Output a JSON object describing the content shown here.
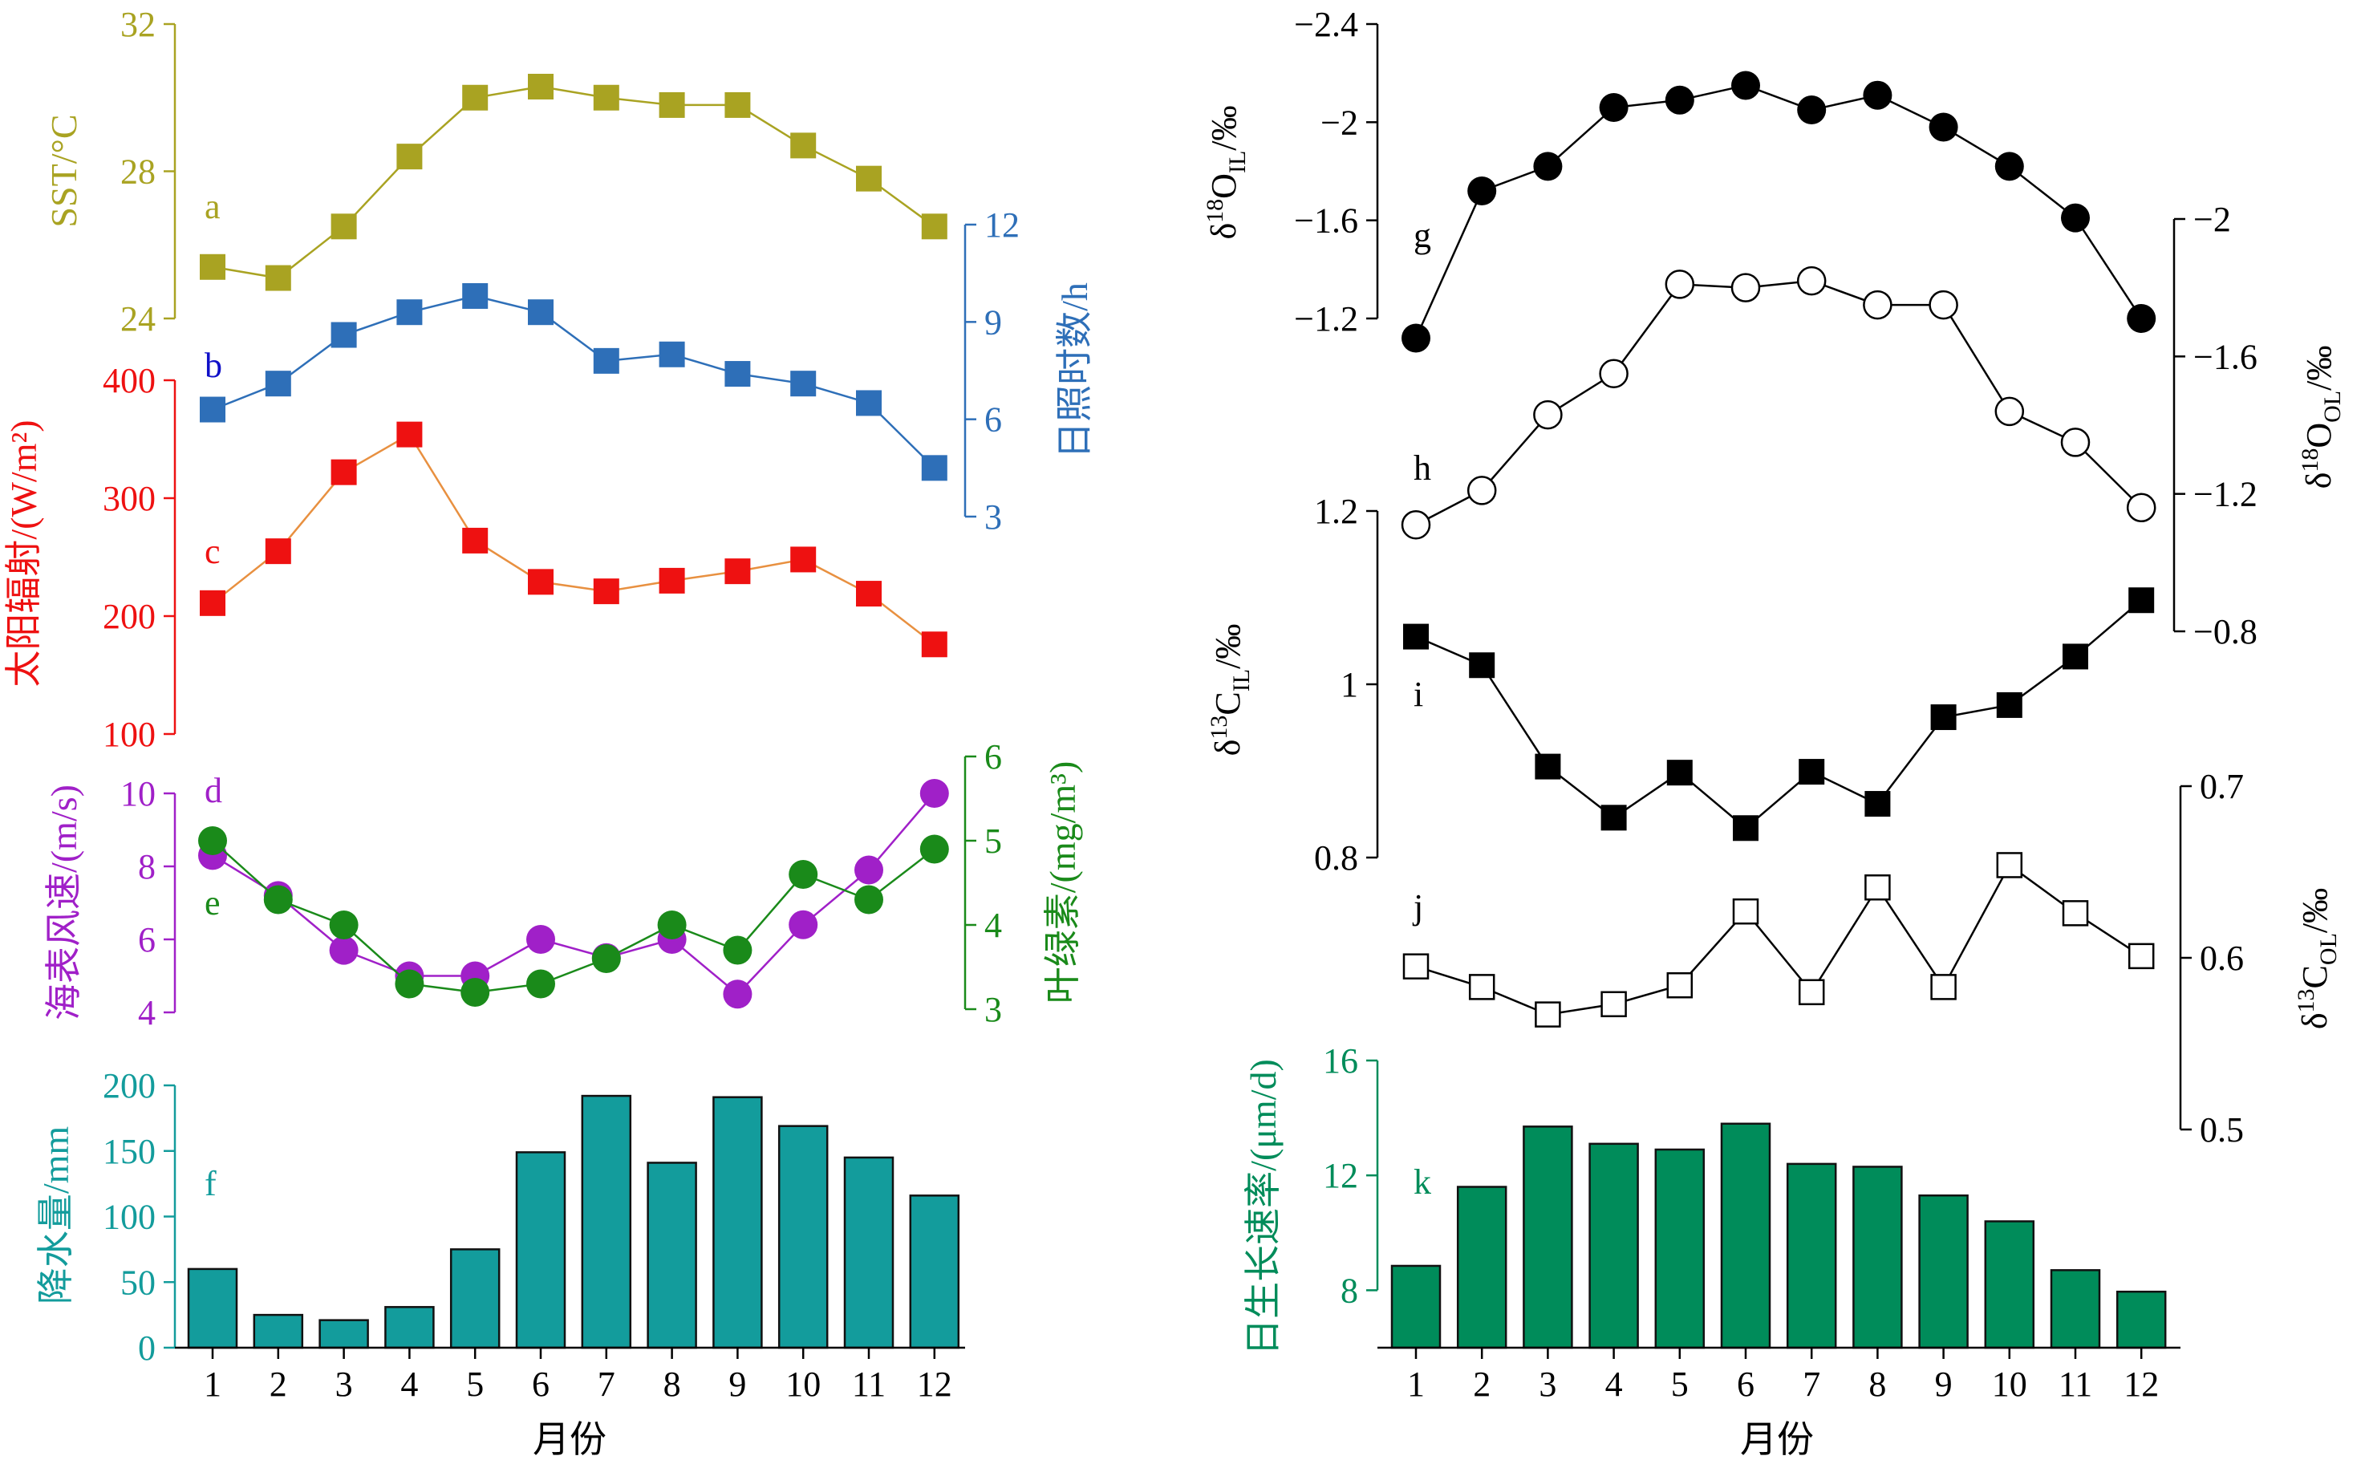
{
  "x_axis": {
    "label": "月份",
    "ticks": [
      "1",
      "2",
      "3",
      "4",
      "5",
      "6",
      "7",
      "8",
      "9",
      "10",
      "11",
      "12"
    ]
  },
  "chart_data": [
    {
      "id": "a",
      "type": "line",
      "marker": "filled-square",
      "color": "#A9A322",
      "panel_label": "a",
      "ylabel": "SST/°C",
      "axis_side": "left",
      "ylim": [
        24,
        32
      ],
      "yticks": [
        24,
        28,
        32
      ],
      "x": [
        1,
        2,
        3,
        4,
        5,
        6,
        7,
        8,
        9,
        10,
        11,
        12
      ],
      "values": [
        25.4,
        25.1,
        26.5,
        28.4,
        30.0,
        30.3,
        30.0,
        29.8,
        29.8,
        28.7,
        27.8,
        26.5
      ]
    },
    {
      "id": "b",
      "type": "line",
      "marker": "filled-square",
      "color": "#2E6FB8",
      "label_color": "#1010C8",
      "panel_label": "b",
      "ylabel": "日照时数/h",
      "axis_side": "right",
      "ylim": [
        3,
        12
      ],
      "yticks": [
        3,
        6,
        9,
        12
      ],
      "x": [
        1,
        2,
        3,
        4,
        5,
        6,
        7,
        8,
        9,
        10,
        11,
        12
      ],
      "values": [
        6.3,
        7.1,
        8.6,
        9.3,
        9.8,
        9.3,
        7.8,
        8.0,
        7.4,
        7.1,
        6.5,
        4.5
      ]
    },
    {
      "id": "c",
      "type": "line",
      "marker": "filled-square",
      "color": "#EE1111",
      "line_color": "#E89040",
      "panel_label": "c",
      "ylabel": "太阳辐射/(W/m²)",
      "axis_side": "left",
      "ylim": [
        100,
        400
      ],
      "yticks": [
        100,
        200,
        300,
        400
      ],
      "x": [
        1,
        2,
        3,
        4,
        5,
        6,
        7,
        8,
        9,
        10,
        11,
        12
      ],
      "values": [
        211,
        255,
        322,
        354,
        264,
        229,
        221,
        230,
        238,
        248,
        219,
        176
      ]
    },
    {
      "id": "d",
      "type": "line",
      "marker": "filled-circle",
      "color": "#A020C8",
      "panel_label": "d",
      "ylabel": "海表风速/(m/s)",
      "axis_side": "left",
      "ylim": [
        4,
        10
      ],
      "yticks": [
        4,
        6,
        8,
        10
      ],
      "x": [
        1,
        2,
        3,
        4,
        5,
        6,
        7,
        8,
        9,
        10,
        11,
        12
      ],
      "values": [
        8.3,
        7.2,
        5.7,
        5.0,
        5.0,
        6.0,
        5.5,
        6.0,
        4.5,
        6.4,
        7.9,
        10.0
      ]
    },
    {
      "id": "e",
      "type": "line",
      "marker": "filled-circle",
      "color": "#1A8A1A",
      "panel_label": "e",
      "ylabel": "叶绿素/(mg/m³)",
      "axis_side": "right",
      "ylim": [
        3,
        6
      ],
      "yticks": [
        3,
        4,
        5,
        6
      ],
      "x": [
        1,
        2,
        3,
        4,
        5,
        6,
        7,
        8,
        9,
        10,
        11,
        12
      ],
      "values": [
        5.0,
        4.3,
        4.0,
        3.3,
        3.2,
        3.3,
        3.6,
        4.0,
        3.7,
        4.6,
        4.3,
        4.9
      ]
    },
    {
      "id": "f",
      "type": "bar",
      "color": "#139C9C",
      "panel_label": "f",
      "ylabel": "降水量/mm",
      "axis_side": "left",
      "ylim": [
        0,
        200
      ],
      "yticks": [
        0,
        50,
        100,
        150,
        200
      ],
      "x": [
        1,
        2,
        3,
        4,
        5,
        6,
        7,
        8,
        9,
        10,
        11,
        12
      ],
      "values": [
        60,
        25,
        21,
        31,
        75,
        149,
        192,
        141,
        191,
        169,
        145,
        116
      ]
    },
    {
      "id": "g",
      "type": "line",
      "marker": "filled-circle",
      "color": "#000000",
      "panel_label": "g",
      "ylabel": "δ18OIL/‰",
      "axis_side": "left",
      "inverted": true,
      "ylim": [
        -1.2,
        -2.4
      ],
      "yticks": [
        -1.2,
        -1.6,
        -2.0,
        -2.4
      ],
      "x": [
        1,
        2,
        3,
        4,
        5,
        6,
        7,
        8,
        9,
        10,
        11,
        12
      ],
      "values": [
        -1.12,
        -1.72,
        -1.82,
        -2.06,
        -2.09,
        -2.15,
        -2.05,
        -2.11,
        -1.98,
        -1.82,
        -1.61,
        -1.2
      ]
    },
    {
      "id": "h",
      "type": "line",
      "marker": "open-circle",
      "color": "#000000",
      "panel_label": "h",
      "ylabel": "δ18OOL/‰",
      "axis_side": "right",
      "inverted": true,
      "ylim": [
        -0.8,
        -2.0
      ],
      "yticks": [
        -0.8,
        -1.2,
        -1.6,
        -2.0
      ],
      "x": [
        1,
        2,
        3,
        4,
        5,
        6,
        7,
        8,
        9,
        10,
        11,
        12
      ],
      "values": [
        -1.11,
        -1.21,
        -1.43,
        -1.55,
        -1.81,
        -1.8,
        -1.82,
        -1.75,
        -1.75,
        -1.44,
        -1.35,
        -1.16
      ]
    },
    {
      "id": "i",
      "type": "line",
      "marker": "filled-square",
      "color": "#000000",
      "panel_label": "i",
      "ylabel": "δ13CIL/‰",
      "axis_side": "left",
      "ylim": [
        0.8,
        1.2
      ],
      "yticks": [
        0.8,
        1.0,
        1.2
      ],
      "x": [
        1,
        2,
        3,
        4,
        5,
        6,
        7,
        8,
        9,
        10,
        11,
        12
      ],
      "values": [
        1.055,
        1.022,
        0.905,
        0.846,
        0.898,
        0.834,
        0.899,
        0.862,
        0.962,
        0.976,
        1.032,
        1.097
      ]
    },
    {
      "id": "j",
      "type": "line",
      "marker": "open-square",
      "color": "#000000",
      "panel_label": "j",
      "ylabel": "δ13COL/‰",
      "axis_side": "right",
      "ylim": [
        0.5,
        0.7
      ],
      "yticks": [
        0.5,
        0.6,
        0.7
      ],
      "x": [
        1,
        2,
        3,
        4,
        5,
        6,
        7,
        8,
        9,
        10,
        11,
        12
      ],
      "values": [
        0.595,
        0.583,
        0.567,
        0.573,
        0.584,
        0.627,
        0.58,
        0.641,
        0.583,
        0.654,
        0.626,
        0.601
      ]
    },
    {
      "id": "k",
      "type": "bar",
      "color": "#008C5A",
      "panel_label": "k",
      "ylabel": "日生长速率/(μm/d)",
      "axis_side": "left",
      "ylim": [
        6,
        16
      ],
      "yticks": [
        8,
        12,
        16
      ],
      "x": [
        1,
        2,
        3,
        4,
        5,
        6,
        7,
        8,
        9,
        10,
        11,
        12
      ],
      "values": [
        8.85,
        11.6,
        13.7,
        13.1,
        12.9,
        13.8,
        12.4,
        12.3,
        11.3,
        10.4,
        8.7,
        7.95
      ]
    }
  ]
}
